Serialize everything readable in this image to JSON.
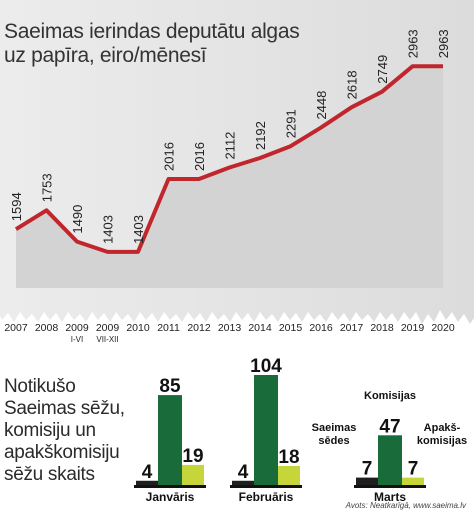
{
  "title_lines": [
    "Saeimas ierindas deputātu algas",
    "uz papīra, eiro/mēnesī"
  ],
  "subtitle_lines": [
    "Notikušo",
    "Saeimas sēžu,",
    "komisiju un",
    "apakškomisiju",
    "sēžu skaits"
  ],
  "source": "Avots: Neatkarīgā, www.saeima.lv",
  "colors": {
    "line": "#c0262c",
    "dark_green": "#1a6b3a",
    "light_green": "#c6d63a",
    "sheet": "#e6e6e6"
  },
  "chart_data": [
    {
      "type": "line",
      "title": "Saeimas ierindas deputātu algas uz papīra, eiro/mēnesī",
      "x": [
        "2007",
        "2008",
        "2009\nI-VI",
        "2009\nVII-XII",
        "2010",
        "2011",
        "2012",
        "2013",
        "2014",
        "2015",
        "2016",
        "2017",
        "2018",
        "2019",
        "2020"
      ],
      "x_labels": [
        {
          "main": "2007",
          "sub": ""
        },
        {
          "main": "2008",
          "sub": ""
        },
        {
          "main": "2009",
          "sub": "I-VI"
        },
        {
          "main": "2009",
          "sub": "VII-XII"
        },
        {
          "main": "2010",
          "sub": ""
        },
        {
          "main": "2011",
          "sub": ""
        },
        {
          "main": "2012",
          "sub": ""
        },
        {
          "main": "2013",
          "sub": ""
        },
        {
          "main": "2014",
          "sub": ""
        },
        {
          "main": "2015",
          "sub": ""
        },
        {
          "main": "2016",
          "sub": ""
        },
        {
          "main": "2017",
          "sub": ""
        },
        {
          "main": "2018",
          "sub": ""
        },
        {
          "main": "2019",
          "sub": ""
        },
        {
          "main": "2020",
          "sub": ""
        }
      ],
      "values": [
        1594,
        1753,
        1490,
        1403,
        1403,
        2016,
        2016,
        2112,
        2192,
        2291,
        2448,
        2618,
        2749,
        2963,
        2963
      ],
      "ylim": [
        1100,
        3150
      ]
    },
    {
      "type": "bar",
      "title": "Notikušo Saeimas sēžu, komisiju un apakškomisiju sēžu skaits",
      "groups": [
        {
          "month": "Janvāris",
          "values": [
            4,
            85,
            19
          ],
          "labels": [
            "4",
            "85",
            "19"
          ]
        },
        {
          "month": "Februāris",
          "values": [
            4,
            104,
            18
          ],
          "labels": [
            "4",
            "104",
            "18"
          ]
        },
        {
          "month": "Marts",
          "values": [
            7,
            47,
            7
          ],
          "labels": [
            "7",
            "47",
            "7"
          ]
        }
      ],
      "series": [
        {
          "name": "Saeimas sēdes",
          "color": "#1f1f1f"
        },
        {
          "name": "Komisijas",
          "color": "#1a6b3a"
        },
        {
          "name": "Apakškomisijas",
          "color": "#c6d63a"
        }
      ],
      "marts_labels": {
        "sedes": [
          "Saeimas",
          "sēdes"
        ],
        "komisijas": "Komisijas",
        "apaksk": [
          "Apakš-",
          "komisijas"
        ]
      }
    }
  ]
}
